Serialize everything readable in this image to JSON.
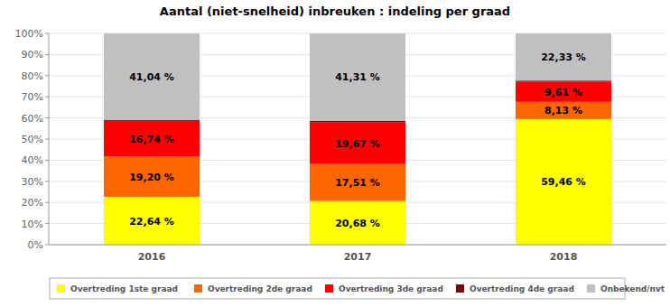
{
  "chart_data": {
    "type": "bar",
    "stacked": true,
    "title": "Aantal (niet-snelheid) inbreuken : indeling per graad",
    "categories": [
      "2016",
      "2017",
      "2018"
    ],
    "series": [
      {
        "name": "Overtreding 1ste graad",
        "color": "#ffff00",
        "values": [
          22.64,
          20.68,
          59.46
        ],
        "value_labels": [
          "22,64 %",
          "20,68 %",
          "59,46 %"
        ]
      },
      {
        "name": "Overtreding 2de graad",
        "color": "#ff6600",
        "values": [
          19.2,
          17.51,
          8.13
        ],
        "value_labels": [
          "19,20 %",
          "17,51 %",
          "8,13 %"
        ]
      },
      {
        "name": "Overtreding 3de graad",
        "color": "#ff0000",
        "values": [
          16.74,
          19.67,
          9.61
        ],
        "value_labels": [
          "16,74 %",
          "19,67 %",
          "9,61 %"
        ]
      },
      {
        "name": "Overtreding 4de graad",
        "color": "#800000",
        "values": [
          0.38,
          0.83,
          0.47
        ]
      },
      {
        "name": "Onbekend/nvt",
        "color": "#c0c0c0",
        "values": [
          41.04,
          41.31,
          22.33
        ],
        "value_labels": [
          "41,04 %",
          "41,31 %",
          "22,33 %"
        ]
      }
    ],
    "ylim": [
      0,
      100
    ],
    "yticks": [
      {
        "value": 0,
        "label": "0%"
      },
      {
        "value": 10,
        "label": "10%"
      },
      {
        "value": 20,
        "label": "20%"
      },
      {
        "value": 30,
        "label": "30%"
      },
      {
        "value": 40,
        "label": "40%"
      },
      {
        "value": 50,
        "label": "50%"
      },
      {
        "value": 60,
        "label": "60%"
      },
      {
        "value": 70,
        "label": "70%"
      },
      {
        "value": 80,
        "label": "80%"
      },
      {
        "value": 90,
        "label": "90%"
      },
      {
        "value": 100,
        "label": "100%"
      }
    ],
    "grid": true,
    "legend": "bottom",
    "data_labels": true
  }
}
